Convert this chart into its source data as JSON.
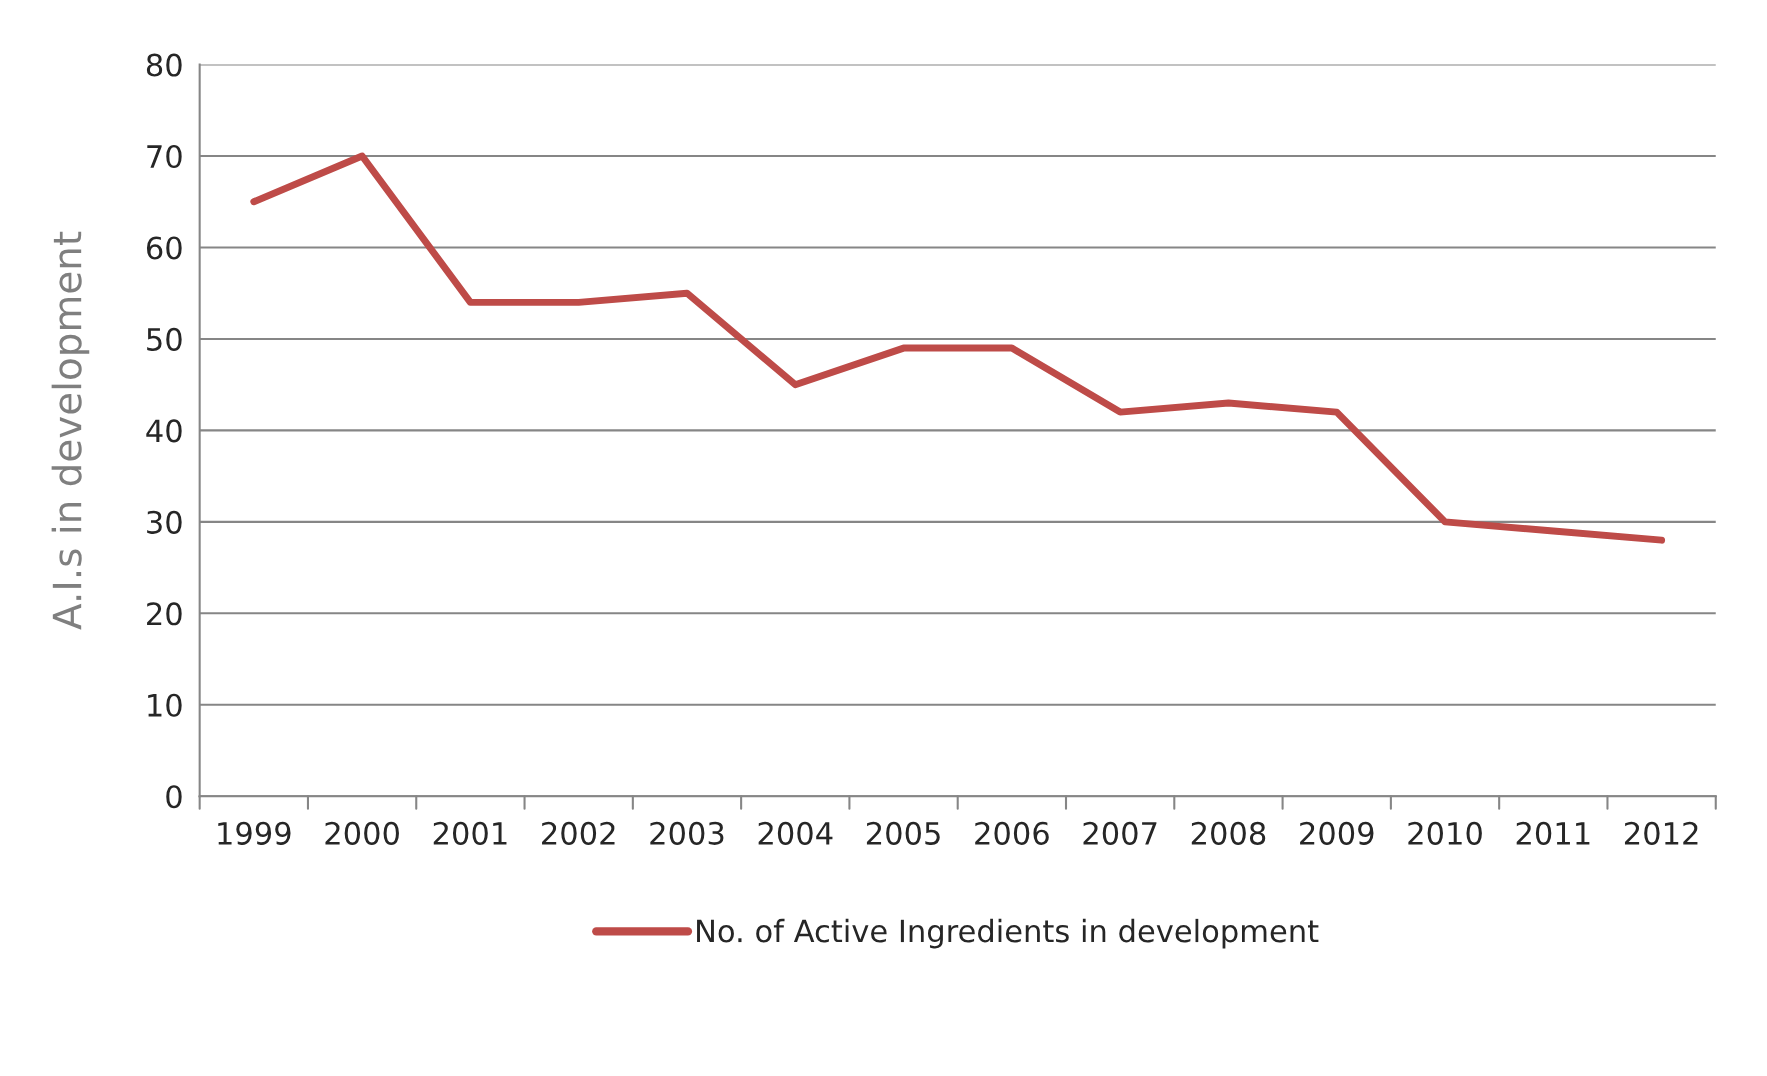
{
  "chart_data": {
    "type": "line",
    "ylabel": "A.I.s in development",
    "categories": [
      "1999",
      "2000",
      "2001",
      "2002",
      "2003",
      "2004",
      "2005",
      "2006",
      "2007",
      "2008",
      "2009",
      "2010",
      "2011",
      "2012"
    ],
    "series": [
      {
        "name": "No. of Active Ingredients in development",
        "color": "#be4b48",
        "values": [
          65,
          70,
          54,
          54,
          55,
          45,
          49,
          49,
          42,
          43,
          42,
          30,
          29,
          28
        ]
      }
    ],
    "ylim": [
      0,
      80
    ],
    "yticks": [
      0,
      10,
      20,
      30,
      40,
      50,
      60,
      70,
      80
    ],
    "grid": "y",
    "legend": "bottom",
    "marker": "none",
    "line_style": "solid"
  }
}
